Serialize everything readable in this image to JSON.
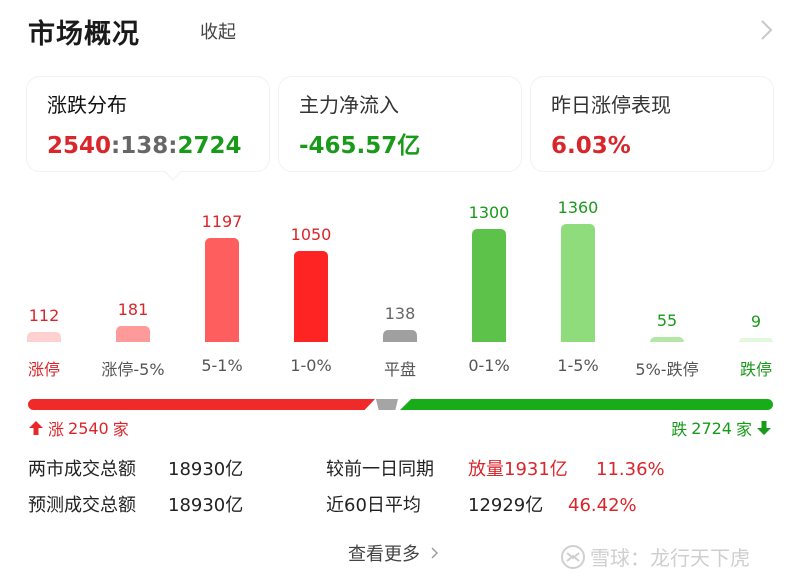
{
  "header": {
    "title": "市场概况",
    "collapse_label": "收起"
  },
  "cards": [
    {
      "label": "涨跌分布",
      "up": "2540",
      "sep1": ":",
      "flat": "138",
      "sep2": ":",
      "down": "2724"
    },
    {
      "label": "主力净流入",
      "value": "-465.57亿"
    },
    {
      "label": "昨日涨停表现",
      "value": "6.03%"
    }
  ],
  "chart_data": {
    "type": "bar",
    "title": "涨跌分布",
    "categories": [
      "涨停",
      "涨停-5%",
      "5-1%",
      "1-0%",
      "平盘",
      "0-1%",
      "1-5%",
      "5%-跌停",
      "跌停"
    ],
    "values": [
      112,
      181,
      1197,
      1050,
      138,
      1300,
      1360,
      55,
      9
    ],
    "colors": [
      "#ffd0d0",
      "#ff9a9a",
      "#ff5e5e",
      "#ff2424",
      "#a0a0a0",
      "#5cc24a",
      "#8fdc7c",
      "#b4e6a8",
      "#e2f7dc"
    ],
    "value_colors": [
      "#d9262b",
      "#d9262b",
      "#d9262b",
      "#d9262b",
      "#666666",
      "#1a9a1a",
      "#1a9a1a",
      "#1a9a1a",
      "#1a9a1a"
    ],
    "label_colors": [
      "#d9262b",
      "#555555",
      "#555555",
      "#555555",
      "#555555",
      "#555555",
      "#555555",
      "#555555",
      "#1a9a1a"
    ],
    "xlabel": "",
    "ylabel": "",
    "grid": false
  },
  "ratio_bar": {
    "up_count": 2540,
    "flat_count": 138,
    "down_count": 2724,
    "up_color": "#f02929",
    "flat_color": "#a5a5a5",
    "down_color": "#18ac18"
  },
  "rise": {
    "prefix": "涨",
    "count": "2540",
    "suffix": "家"
  },
  "fall": {
    "prefix": "跌",
    "count": "2724",
    "suffix": "家"
  },
  "stats": {
    "total_label": "两市成交总额",
    "total_value": "18930亿",
    "forecast_label": "预测成交总额",
    "forecast_value": "18930亿",
    "prev_label": "较前一日同期",
    "prev_value": "放量1931亿",
    "prev_pct": "11.36%",
    "avg_label": "近60日平均",
    "avg_value": "12929亿",
    "avg_pct": "46.42%"
  },
  "footer": {
    "more_label": "查看更多",
    "watermark": "雪球：龙行天下虎"
  },
  "colors": {
    "red": "#d9262b",
    "green": "#1a9a1a"
  }
}
